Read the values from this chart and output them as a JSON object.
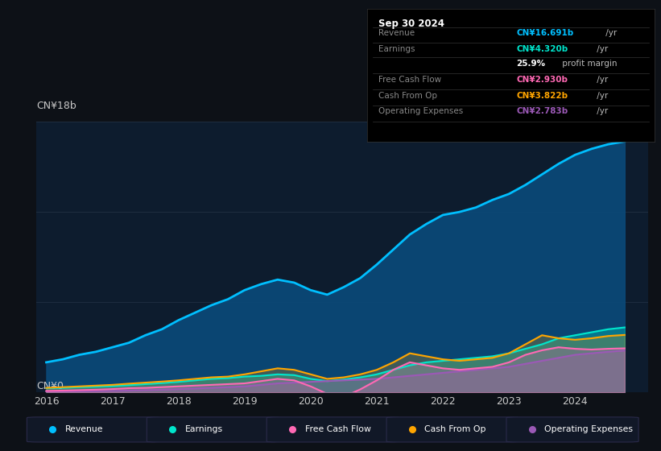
{
  "background_color": "#0d1117",
  "chart_bg_color": "#0d1c2e",
  "grid_color": "#1e2d40",
  "text_color": "#c8c8c8",
  "ylabel_text": "CN¥18b",
  "y0_text": "CN¥0",
  "x_ticks": [
    2016,
    2017,
    2018,
    2019,
    2020,
    2021,
    2022,
    2023,
    2024
  ],
  "ylim": [
    0,
    18
  ],
  "series": {
    "revenue": {
      "color": "#00bfff",
      "fill_color": "#0a4a7a",
      "label": "Revenue",
      "x": [
        2016.0,
        2016.25,
        2016.5,
        2016.75,
        2017.0,
        2017.25,
        2017.5,
        2017.75,
        2018.0,
        2018.25,
        2018.5,
        2018.75,
        2019.0,
        2019.25,
        2019.5,
        2019.75,
        2020.0,
        2020.25,
        2020.5,
        2020.75,
        2021.0,
        2021.25,
        2021.5,
        2021.75,
        2022.0,
        2022.25,
        2022.5,
        2022.75,
        2023.0,
        2023.25,
        2023.5,
        2023.75,
        2024.0,
        2024.25,
        2024.5,
        2024.75
      ],
      "y": [
        2.0,
        2.2,
        2.5,
        2.7,
        3.0,
        3.3,
        3.8,
        4.2,
        4.8,
        5.3,
        5.8,
        6.2,
        6.8,
        7.2,
        7.5,
        7.3,
        6.8,
        6.5,
        7.0,
        7.6,
        8.5,
        9.5,
        10.5,
        11.2,
        11.8,
        12.0,
        12.3,
        12.8,
        13.2,
        13.8,
        14.5,
        15.2,
        15.8,
        16.2,
        16.5,
        16.691
      ]
    },
    "earnings": {
      "color": "#00e5cc",
      "fill_color": "#00e5cc",
      "label": "Earnings",
      "x": [
        2016.0,
        2016.25,
        2016.5,
        2016.75,
        2017.0,
        2017.25,
        2017.5,
        2017.75,
        2018.0,
        2018.25,
        2018.5,
        2018.75,
        2019.0,
        2019.25,
        2019.5,
        2019.75,
        2020.0,
        2020.25,
        2020.5,
        2020.75,
        2021.0,
        2021.25,
        2021.5,
        2021.75,
        2022.0,
        2022.25,
        2022.5,
        2022.75,
        2023.0,
        2023.25,
        2023.5,
        2023.75,
        2024.0,
        2024.25,
        2024.5,
        2024.75
      ],
      "y": [
        0.28,
        0.3,
        0.35,
        0.38,
        0.42,
        0.48,
        0.55,
        0.62,
        0.7,
        0.8,
        0.9,
        0.95,
        1.05,
        1.1,
        1.2,
        1.15,
        0.9,
        0.75,
        0.85,
        1.0,
        1.2,
        1.5,
        1.8,
        2.0,
        2.1,
        2.2,
        2.3,
        2.4,
        2.6,
        2.9,
        3.2,
        3.6,
        3.8,
        4.0,
        4.2,
        4.32
      ]
    },
    "free_cash_flow": {
      "color": "#ff69b4",
      "fill_color": "#ff69b4",
      "label": "Free Cash Flow",
      "x": [
        2016.0,
        2016.25,
        2016.5,
        2016.75,
        2017.0,
        2017.25,
        2017.5,
        2017.75,
        2018.0,
        2018.25,
        2018.5,
        2018.75,
        2019.0,
        2019.25,
        2019.5,
        2019.75,
        2020.0,
        2020.25,
        2020.5,
        2020.75,
        2021.0,
        2021.25,
        2021.5,
        2021.75,
        2022.0,
        2022.25,
        2022.5,
        2022.75,
        2023.0,
        2023.25,
        2023.5,
        2023.75,
        2024.0,
        2024.25,
        2024.5,
        2024.75
      ],
      "y": [
        0.1,
        0.12,
        0.15,
        0.18,
        0.22,
        0.28,
        0.3,
        0.35,
        0.4,
        0.45,
        0.5,
        0.55,
        0.6,
        0.75,
        0.9,
        0.8,
        0.4,
        -0.1,
        -0.3,
        0.2,
        0.8,
        1.5,
        2.0,
        1.8,
        1.6,
        1.5,
        1.6,
        1.7,
        2.0,
        2.5,
        2.8,
        3.0,
        2.9,
        2.85,
        2.9,
        2.93
      ]
    },
    "cash_from_op": {
      "color": "#ffa500",
      "fill_color": "#ffa500",
      "label": "Cash From Op",
      "x": [
        2016.0,
        2016.25,
        2016.5,
        2016.75,
        2017.0,
        2017.25,
        2017.5,
        2017.75,
        2018.0,
        2018.25,
        2018.5,
        2018.75,
        2019.0,
        2019.25,
        2019.5,
        2019.75,
        2020.0,
        2020.25,
        2020.5,
        2020.75,
        2021.0,
        2021.25,
        2021.5,
        2021.75,
        2022.0,
        2022.25,
        2022.5,
        2022.75,
        2023.0,
        2023.25,
        2023.5,
        2023.75,
        2024.0,
        2024.25,
        2024.5,
        2024.75
      ],
      "y": [
        0.3,
        0.35,
        0.4,
        0.45,
        0.5,
        0.58,
        0.65,
        0.72,
        0.8,
        0.9,
        1.0,
        1.05,
        1.2,
        1.4,
        1.6,
        1.5,
        1.2,
        0.9,
        1.0,
        1.2,
        1.5,
        2.0,
        2.6,
        2.4,
        2.2,
        2.1,
        2.2,
        2.3,
        2.6,
        3.2,
        3.8,
        3.6,
        3.5,
        3.6,
        3.75,
        3.822
      ]
    },
    "operating_expenses": {
      "color": "#9b59b6",
      "fill_color": "#9b59b6",
      "label": "Operating Expenses",
      "x": [
        2016.0,
        2016.25,
        2016.5,
        2016.75,
        2017.0,
        2017.25,
        2017.5,
        2017.75,
        2018.0,
        2018.25,
        2018.5,
        2018.75,
        2019.0,
        2019.25,
        2019.5,
        2019.75,
        2020.0,
        2020.25,
        2020.5,
        2020.75,
        2021.0,
        2021.25,
        2021.5,
        2021.75,
        2022.0,
        2022.25,
        2022.5,
        2022.75,
        2023.0,
        2023.25,
        2023.5,
        2023.75,
        2024.0,
        2024.25,
        2024.5,
        2024.75
      ],
      "y": [
        0.05,
        0.06,
        0.07,
        0.08,
        0.1,
        0.12,
        0.15,
        0.18,
        0.22,
        0.26,
        0.3,
        0.35,
        0.4,
        0.5,
        0.6,
        0.65,
        0.7,
        0.75,
        0.8,
        0.85,
        0.9,
        1.0,
        1.1,
        1.2,
        1.3,
        1.4,
        1.5,
        1.6,
        1.7,
        1.9,
        2.1,
        2.3,
        2.5,
        2.6,
        2.7,
        2.783
      ]
    }
  },
  "info_box": {
    "date": "Sep 30 2024",
    "rows": [
      {
        "label": "Revenue",
        "value": "CN¥16.691b",
        "value_color": "#00bfff",
        "suffix": " /yr"
      },
      {
        "label": "Earnings",
        "value": "CN¥4.320b",
        "value_color": "#00e5cc",
        "suffix": " /yr"
      },
      {
        "label": "",
        "value": "25.9%",
        "value_color": "#ffffff",
        "suffix": " profit margin"
      },
      {
        "label": "Free Cash Flow",
        "value": "CN¥2.930b",
        "value_color": "#ff69b4",
        "suffix": " /yr"
      },
      {
        "label": "Cash From Op",
        "value": "CN¥3.822b",
        "value_color": "#ffa500",
        "suffix": " /yr"
      },
      {
        "label": "Operating Expenses",
        "value": "CN¥2.783b",
        "value_color": "#9b59b6",
        "suffix": " /yr"
      }
    ]
  },
  "legend": [
    {
      "label": "Revenue",
      "color": "#00bfff"
    },
    {
      "label": "Earnings",
      "color": "#00e5cc"
    },
    {
      "label": "Free Cash Flow",
      "color": "#ff69b4"
    },
    {
      "label": "Cash From Op",
      "color": "#ffa500"
    },
    {
      "label": "Operating Expenses",
      "color": "#9b59b6"
    }
  ]
}
